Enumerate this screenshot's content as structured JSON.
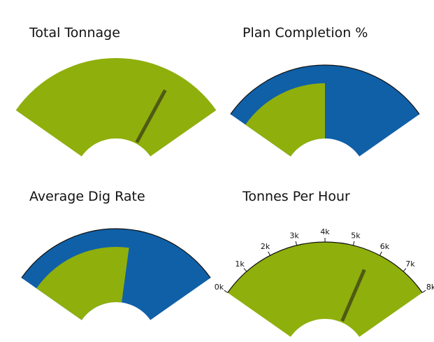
{
  "colors": {
    "green": "#8faf0c",
    "blue": "#1060a8",
    "needle": "#4f5a13",
    "outline": "#111111"
  },
  "chart_data": [
    {
      "type": "gauge",
      "title": "Total Tonnage",
      "style": "needle",
      "range": [
        0,
        1
      ],
      "value": 0.76,
      "ticks": []
    },
    {
      "type": "gauge",
      "title": "Plan Completion %",
      "style": "fill",
      "range": [
        0,
        100
      ],
      "value": 50,
      "outer_band_value": 100,
      "ticks": []
    },
    {
      "type": "gauge",
      "title": "Average Dig Rate",
      "style": "fill",
      "range": [
        0,
        1
      ],
      "value": 0.57,
      "outer_band_value": 1.0,
      "ticks": []
    },
    {
      "type": "gauge",
      "title": "Tonnes Per Hour",
      "style": "needle",
      "range": [
        0,
        8000
      ],
      "value": 5700,
      "ticks": [
        "0k",
        "1k",
        "2k",
        "3k",
        "4k",
        "5k",
        "6k",
        "7k",
        "8k"
      ]
    }
  ]
}
